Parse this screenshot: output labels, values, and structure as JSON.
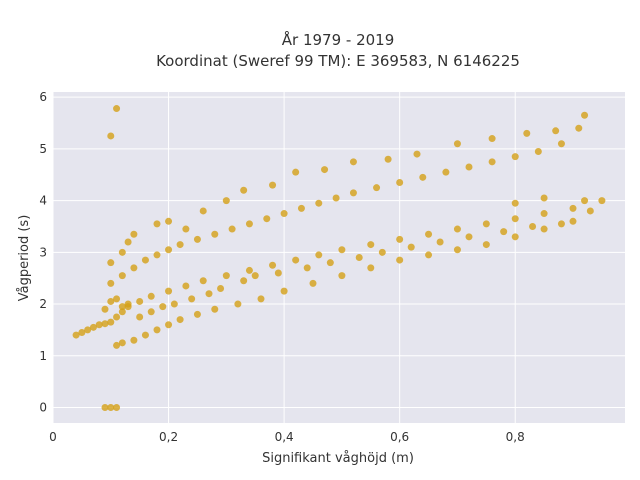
{
  "chart_data": {
    "type": "scatter",
    "title_lines": [
      "År 1979 - 2019",
      "Koordinat (Sweref 99 TM): E 369583, N 6146225"
    ],
    "xlabel": "Signifikant våghöjd (m)",
    "ylabel": "Vågperiod (s)",
    "xlim": [
      0,
      0.99
    ],
    "ylim": [
      -0.3,
      6.1
    ],
    "xticks": [
      0,
      0.2,
      0.4,
      0.6,
      0.8
    ],
    "xtick_labels": [
      "0",
      "0,2",
      "0,4",
      "0,6",
      "0,8"
    ],
    "yticks": [
      0,
      1,
      2,
      3,
      4,
      5,
      6
    ],
    "ytick_labels": [
      "0",
      "1",
      "2",
      "3",
      "4",
      "5",
      "6"
    ],
    "grid": true,
    "colors": {
      "marker": "#D4A017",
      "plot_bg": "#E5E5EE",
      "grid": "#FFFFFF"
    },
    "series": [
      {
        "values": [
          [
            0.04,
            1.4
          ],
          [
            0.05,
            1.45
          ],
          [
            0.06,
            1.5
          ],
          [
            0.07,
            1.55
          ],
          [
            0.08,
            1.6
          ],
          [
            0.09,
            1.62
          ],
          [
            0.1,
            1.65
          ],
          [
            0.11,
            1.75
          ],
          [
            0.12,
            1.85
          ],
          [
            0.13,
            1.95
          ],
          [
            0.15,
            2.05
          ],
          [
            0.17,
            2.15
          ],
          [
            0.2,
            2.25
          ],
          [
            0.23,
            2.35
          ],
          [
            0.26,
            2.45
          ],
          [
            0.3,
            2.55
          ],
          [
            0.34,
            2.65
          ],
          [
            0.38,
            2.75
          ],
          [
            0.42,
            2.85
          ],
          [
            0.46,
            2.95
          ],
          [
            0.5,
            3.05
          ],
          [
            0.55,
            3.15
          ],
          [
            0.6,
            3.25
          ],
          [
            0.65,
            3.35
          ],
          [
            0.7,
            3.45
          ],
          [
            0.75,
            3.55
          ],
          [
            0.8,
            3.65
          ],
          [
            0.85,
            3.75
          ],
          [
            0.9,
            3.85
          ],
          [
            0.95,
            4.0
          ],
          [
            0.1,
            2.4
          ],
          [
            0.12,
            2.55
          ],
          [
            0.14,
            2.7
          ],
          [
            0.16,
            2.85
          ],
          [
            0.18,
            2.95
          ],
          [
            0.2,
            3.05
          ],
          [
            0.22,
            3.15
          ],
          [
            0.25,
            3.25
          ],
          [
            0.28,
            3.35
          ],
          [
            0.31,
            3.45
          ],
          [
            0.34,
            3.55
          ],
          [
            0.37,
            3.65
          ],
          [
            0.4,
            3.75
          ],
          [
            0.43,
            3.85
          ],
          [
            0.46,
            3.95
          ],
          [
            0.49,
            4.05
          ],
          [
            0.52,
            4.15
          ],
          [
            0.56,
            4.25
          ],
          [
            0.6,
            4.35
          ],
          [
            0.64,
            4.45
          ],
          [
            0.68,
            4.55
          ],
          [
            0.72,
            4.65
          ],
          [
            0.76,
            4.75
          ],
          [
            0.8,
            4.85
          ],
          [
            0.84,
            4.95
          ],
          [
            0.88,
            5.1
          ],
          [
            0.91,
            5.4
          ],
          [
            0.92,
            5.65
          ],
          [
            0.11,
            1.2
          ],
          [
            0.12,
            1.25
          ],
          [
            0.14,
            1.3
          ],
          [
            0.16,
            1.4
          ],
          [
            0.18,
            1.5
          ],
          [
            0.2,
            1.6
          ],
          [
            0.22,
            1.7
          ],
          [
            0.25,
            1.8
          ],
          [
            0.28,
            1.9
          ],
          [
            0.32,
            2.0
          ],
          [
            0.36,
            2.1
          ],
          [
            0.4,
            2.25
          ],
          [
            0.45,
            2.4
          ],
          [
            0.5,
            2.55
          ],
          [
            0.55,
            2.7
          ],
          [
            0.6,
            2.85
          ],
          [
            0.65,
            2.95
          ],
          [
            0.7,
            3.05
          ],
          [
            0.75,
            3.15
          ],
          [
            0.8,
            3.3
          ],
          [
            0.85,
            3.45
          ],
          [
            0.9,
            3.6
          ],
          [
            0.1,
            2.8
          ],
          [
            0.12,
            3.0
          ],
          [
            0.13,
            3.2
          ],
          [
            0.14,
            3.35
          ],
          [
            0.18,
            3.55
          ],
          [
            0.2,
            3.6
          ],
          [
            0.23,
            3.45
          ],
          [
            0.26,
            3.8
          ],
          [
            0.3,
            4.0
          ],
          [
            0.33,
            4.2
          ],
          [
            0.38,
            4.3
          ],
          [
            0.42,
            4.55
          ],
          [
            0.47,
            4.6
          ],
          [
            0.52,
            4.75
          ],
          [
            0.58,
            4.8
          ],
          [
            0.63,
            4.9
          ],
          [
            0.7,
            5.1
          ],
          [
            0.76,
            5.2
          ],
          [
            0.82,
            5.3
          ],
          [
            0.87,
            5.35
          ],
          [
            0.09,
            1.9
          ],
          [
            0.1,
            2.05
          ],
          [
            0.11,
            2.1
          ],
          [
            0.12,
            1.95
          ],
          [
            0.13,
            2.0
          ],
          [
            0.15,
            1.75
          ],
          [
            0.17,
            1.85
          ],
          [
            0.19,
            1.95
          ],
          [
            0.21,
            2.0
          ],
          [
            0.24,
            2.1
          ],
          [
            0.27,
            2.2
          ],
          [
            0.29,
            2.3
          ],
          [
            0.33,
            2.45
          ],
          [
            0.35,
            2.55
          ],
          [
            0.39,
            2.6
          ],
          [
            0.44,
            2.7
          ],
          [
            0.48,
            2.8
          ],
          [
            0.53,
            2.9
          ],
          [
            0.57,
            3.0
          ],
          [
            0.62,
            3.1
          ],
          [
            0.67,
            3.2
          ],
          [
            0.72,
            3.3
          ],
          [
            0.78,
            3.4
          ],
          [
            0.83,
            3.5
          ],
          [
            0.88,
            3.55
          ],
          [
            0.93,
            3.8
          ],
          [
            0.92,
            4.0
          ],
          [
            0.85,
            4.05
          ],
          [
            0.8,
            3.95
          ],
          [
            0.11,
            5.78
          ],
          [
            0.1,
            5.25
          ],
          [
            0.09,
            0.0
          ],
          [
            0.1,
            0.0
          ],
          [
            0.11,
            0.0
          ]
        ]
      }
    ]
  }
}
